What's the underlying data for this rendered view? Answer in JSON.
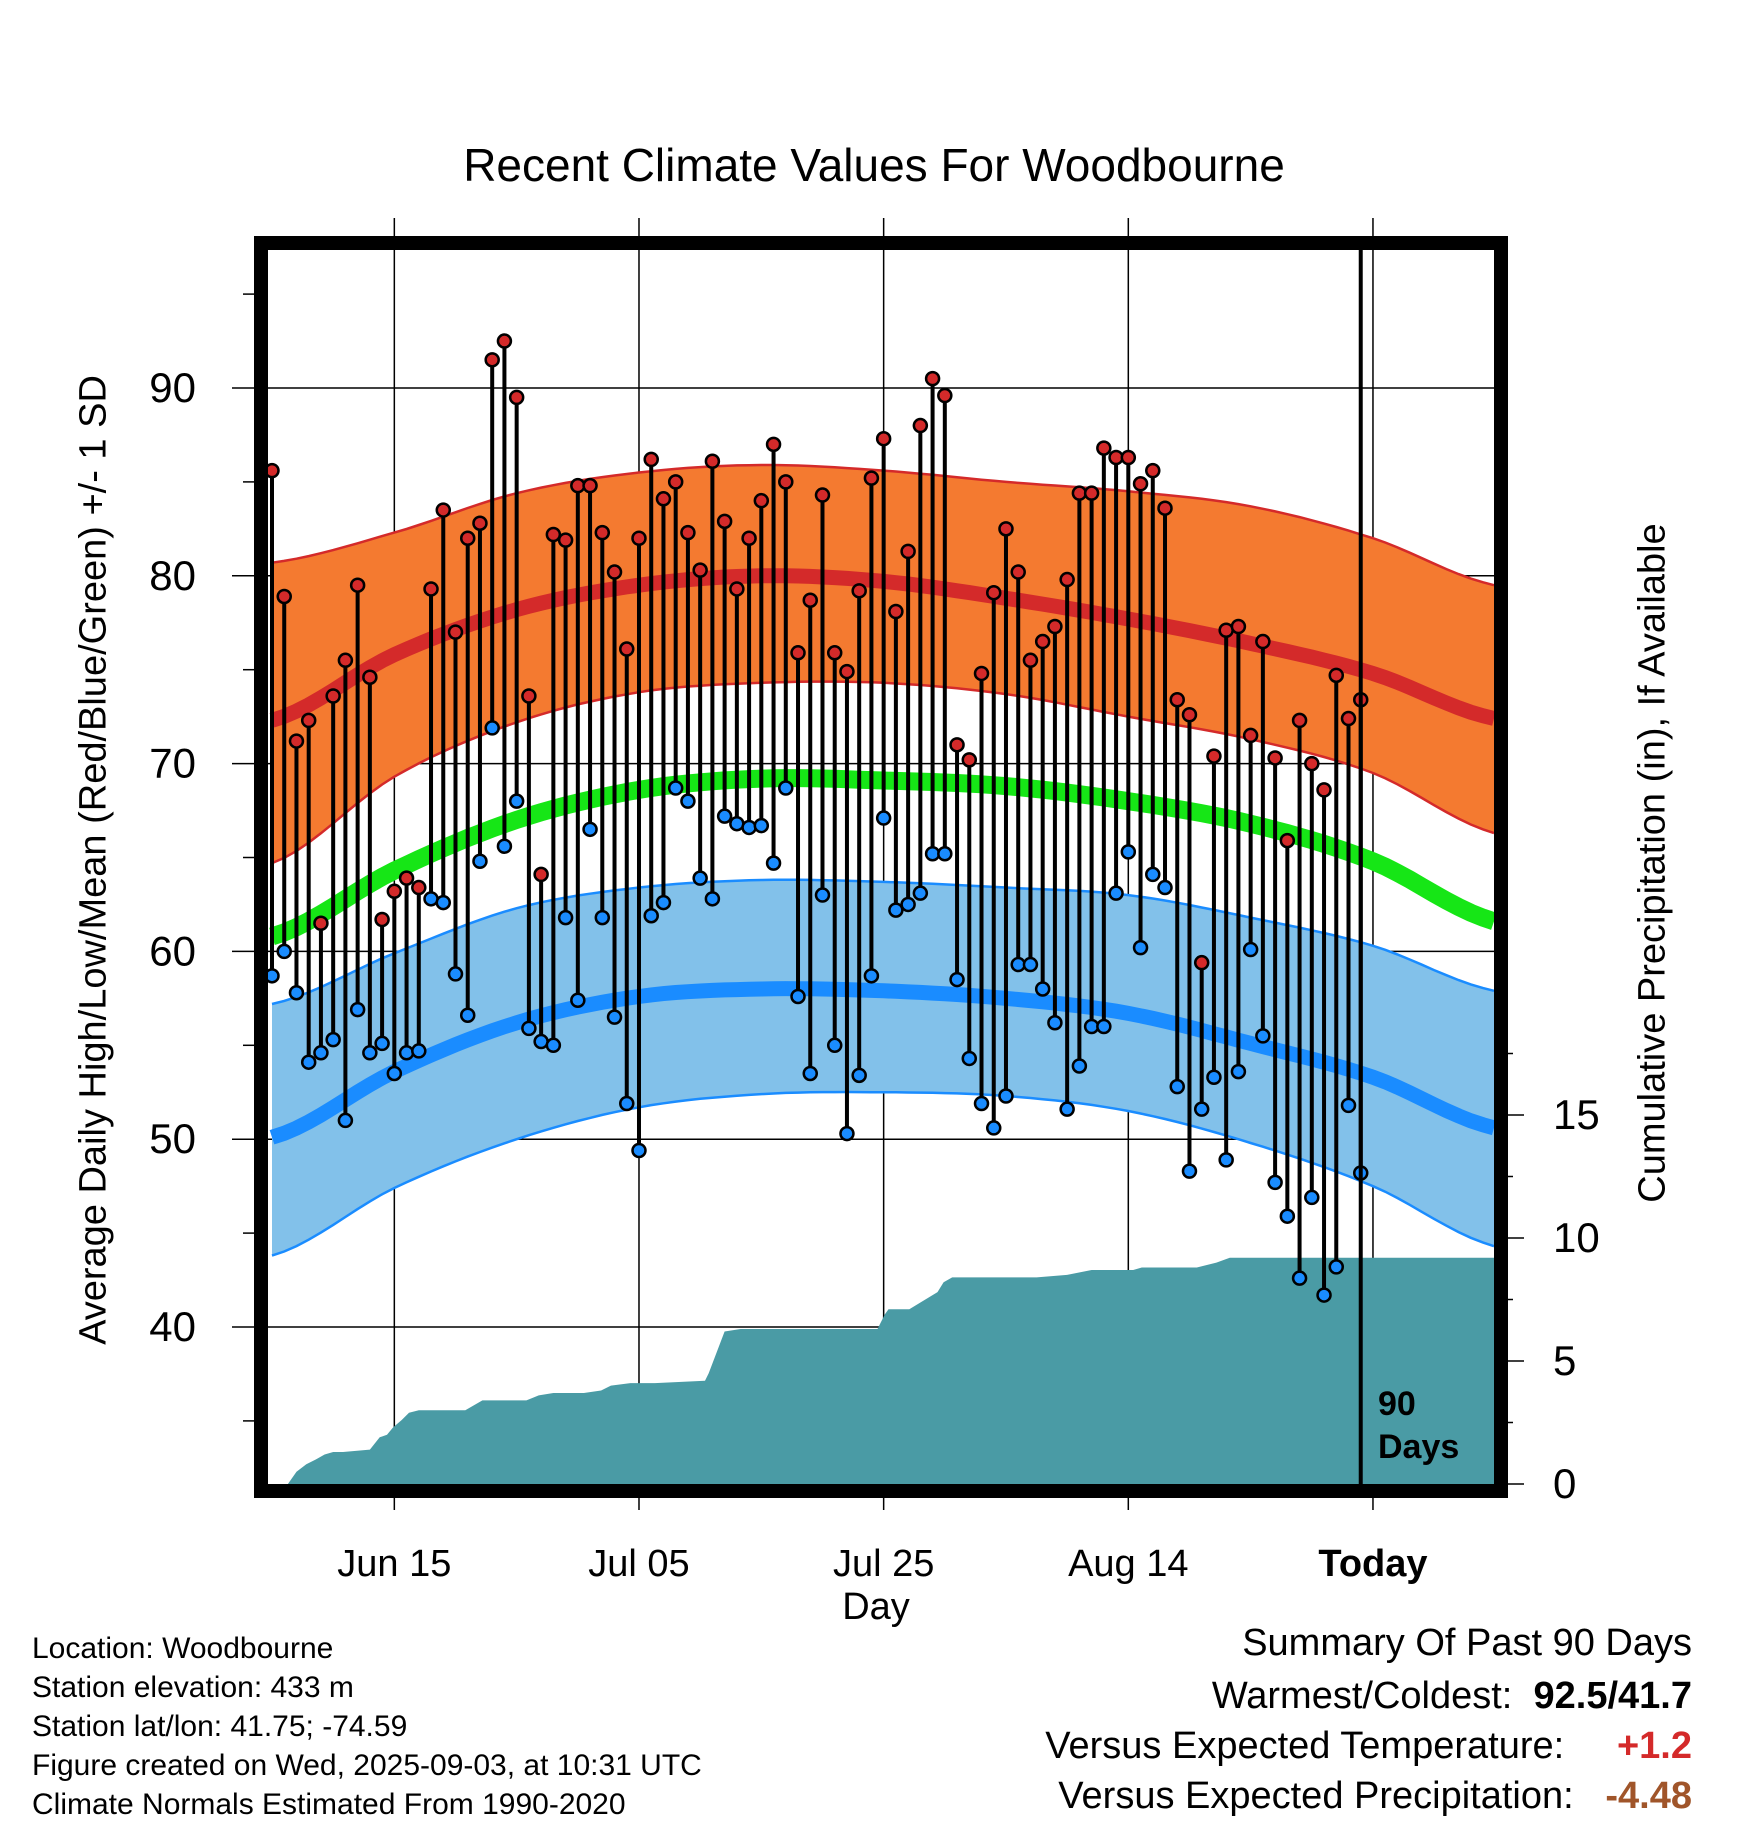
{
  "header": {
    "title": "Recent Climate Values For Woodbourne"
  },
  "axes": {
    "ylabel_left": "Average Daily High/Low/Mean (Red/Blue/Green) +/- 1 SD",
    "ylabel_right": "Cumulative Precipitation (in), If Available",
    "xlabel": "Day",
    "window_label_line1": "90",
    "window_label_line2": "Days"
  },
  "station_info": {
    "location": "Location: Woodbourne",
    "elevation": "Station elevation: 433 m",
    "latlon": "Station lat/lon: 41.75; -74.59",
    "created": "Figure created on Wed, 2025-09-03, at 10:31 UTC",
    "normals": "Climate Normals Estimated From 1990-2020"
  },
  "summary": {
    "heading": "Summary Of Past 90 Days",
    "warmest_label": "Warmest/Coldest:",
    "warmest_value": "92.5",
    "sep": "/",
    "coldest_value": "41.7",
    "temp_label": "Versus Expected Temperature:",
    "temp_value": "+1.2",
    "precip_label": "Versus Expected Precipitation:",
    "precip_value": "-4.48"
  },
  "colors": {
    "high_band": "#f47a30",
    "high_line": "#d42a2a",
    "low_band": "#82c1ea",
    "low_line": "#1a8cff",
    "mean_line": "#16e616",
    "precip": "#4a9ba5",
    "high_point": "#d42a2a",
    "low_point": "#1a8cff",
    "warm_text": "#d42a2a",
    "dry_text": "#a0552a"
  },
  "chart_data": {
    "type": "line",
    "title": "Recent Climate Values For Woodbourne",
    "xlabel": "Day",
    "ylabel": "Average Daily High/Low/Mean (Red/Blue/Green) +/- 1 SD",
    "y2label": "Cumulative Precipitation (in), If Available",
    "x_start": "Jun 05",
    "x_end": "Sep 12",
    "today_day_index": 89,
    "ylim": [
      32,
      98
    ],
    "y2lim": [
      0,
      20
    ],
    "yticks": [
      40,
      50,
      60,
      70,
      80,
      90
    ],
    "y2ticks": [
      0,
      5,
      10,
      15
    ],
    "grid": true,
    "x_ticks": [
      {
        "day": 10,
        "label": "Jun 15"
      },
      {
        "day": 30,
        "label": "Jul 05"
      },
      {
        "day": 50,
        "label": "Jul 25"
      },
      {
        "day": 70,
        "label": "Aug 14"
      },
      {
        "day": 90,
        "label": "Today"
      }
    ],
    "normals": {
      "day": [
        0,
        10,
        20,
        30,
        40,
        50,
        60,
        70,
        80,
        90,
        100
      ],
      "high_mean": [
        72.3,
        75.8,
        78.2,
        79.5,
        80.0,
        79.7,
        78.8,
        77.7,
        76.4,
        74.8,
        72.4
      ],
      "high_upper": [
        80.7,
        82.3,
        84.4,
        85.5,
        85.9,
        85.6,
        85.0,
        84.5,
        83.7,
        82.0,
        79.5
      ],
      "high_lower": [
        64.7,
        69.3,
        72.2,
        73.8,
        74.3,
        74.3,
        73.7,
        72.5,
        71.3,
        69.5,
        66.3
      ],
      "mean": [
        60.8,
        64.3,
        67.0,
        68.6,
        69.2,
        69.1,
        68.8,
        68.0,
        66.8,
        64.8,
        61.6
      ],
      "low_mean": [
        50.1,
        53.6,
        56.2,
        57.6,
        58.0,
        57.9,
        57.5,
        56.7,
        55.1,
        53.3,
        50.6
      ],
      "low_upper": [
        57.2,
        59.9,
        62.3,
        63.4,
        63.8,
        63.7,
        63.4,
        63.0,
        61.8,
        60.3,
        57.9
      ],
      "low_lower": [
        43.8,
        47.4,
        50.0,
        51.7,
        52.4,
        52.5,
        52.3,
        51.5,
        49.8,
        47.5,
        44.3
      ]
    },
    "series": [
      {
        "name": "High",
        "values": [
          85.6,
          78.9,
          71.2,
          72.3,
          61.5,
          73.6,
          75.5,
          79.5,
          74.6,
          61.7,
          63.2,
          63.9,
          63.4,
          79.3,
          83.5,
          77.0,
          82.0,
          82.8,
          91.5,
          92.5,
          89.5,
          73.6,
          64.1,
          82.2,
          81.9,
          84.8,
          84.8,
          82.3,
          80.2,
          76.1,
          82.0,
          86.2,
          84.1,
          85.0,
          82.3,
          80.3,
          86.1,
          82.9,
          79.3,
          82.0,
          84.0,
          87.0,
          85.0,
          75.9,
          78.7,
          84.3,
          75.9,
          74.9,
          79.2,
          85.2,
          87.3,
          78.1,
          81.3,
          88.0,
          90.5,
          89.6,
          71.0,
          70.2,
          74.8,
          79.1,
          82.5,
          80.2,
          75.5,
          76.5,
          77.3,
          79.8,
          84.4,
          84.4,
          86.8,
          86.3,
          86.3,
          84.9,
          85.6,
          83.6,
          73.4,
          72.6,
          59.4,
          70.4,
          77.1,
          77.3,
          71.5,
          76.5,
          70.3,
          65.9,
          72.3,
          70.0,
          68.6,
          74.7,
          72.4,
          73.4
        ]
      },
      {
        "name": "Low",
        "values": [
          58.7,
          60.0,
          57.8,
          54.1,
          54.6,
          55.3,
          51.0,
          56.9,
          54.6,
          55.1,
          53.5,
          54.6,
          54.7,
          62.8,
          62.6,
          58.8,
          56.6,
          64.8,
          71.9,
          65.6,
          68.0,
          55.9,
          55.2,
          55.0,
          61.8,
          57.4,
          66.5,
          61.8,
          56.5,
          51.9,
          49.4,
          61.9,
          62.6,
          68.7,
          68.0,
          63.9,
          62.8,
          67.2,
          66.8,
          66.6,
          66.7,
          64.7,
          68.7,
          57.6,
          53.5,
          63.0,
          55.0,
          50.3,
          53.4,
          58.7,
          67.1,
          62.2,
          62.5,
          63.1,
          65.2,
          65.2,
          58.5,
          54.3,
          51.9,
          50.6,
          52.3,
          59.3,
          59.3,
          58.0,
          56.2,
          51.6,
          53.9,
          56.0,
          56.0,
          63.1,
          65.3,
          60.2,
          64.1,
          63.4,
          52.8,
          48.3,
          51.6,
          53.3,
          48.9,
          53.6,
          60.1,
          55.5,
          47.7,
          45.9,
          42.6,
          46.9,
          41.7,
          43.2,
          51.8,
          48.2
        ]
      }
    ],
    "precipitation": {
      "name": "Cumulative Precipitation",
      "day": [
        1.3,
        2.0,
        2.8,
        3.6,
        4.3,
        5.0,
        5.8,
        8.0,
        8.8,
        9.4,
        9.9,
        10.6,
        11.2,
        12.0,
        12.8,
        15.8,
        17.2,
        18.9,
        20.8,
        21.8,
        23.0,
        25.5,
        26.9,
        27.7,
        29.3,
        29.9,
        31.3,
        35.4,
        35.7,
        37.0,
        38.3,
        39.4,
        40.2,
        49.5,
        50.1,
        50.4,
        52.1,
        54.4,
        54.9,
        55.6,
        62.5,
        65.0,
        67.0,
        70.4,
        71.1,
        74.8,
        75.6,
        77.2,
        78.3,
        90.0,
        100.0
      ],
      "value": [
        0.0,
        0.5,
        0.8,
        1.0,
        1.2,
        1.3,
        1.3,
        1.4,
        1.9,
        2.0,
        2.3,
        2.6,
        2.9,
        3.0,
        3.0,
        3.0,
        3.4,
        3.4,
        3.4,
        3.6,
        3.7,
        3.7,
        3.8,
        4.0,
        4.1,
        4.1,
        4.1,
        4.2,
        4.5,
        6.2,
        6.3,
        6.3,
        6.3,
        6.3,
        6.9,
        7.1,
        7.1,
        7.8,
        8.2,
        8.4,
        8.4,
        8.5,
        8.7,
        8.7,
        8.8,
        8.8,
        8.8,
        9.0,
        9.2,
        9.2,
        9.2
      ]
    }
  }
}
